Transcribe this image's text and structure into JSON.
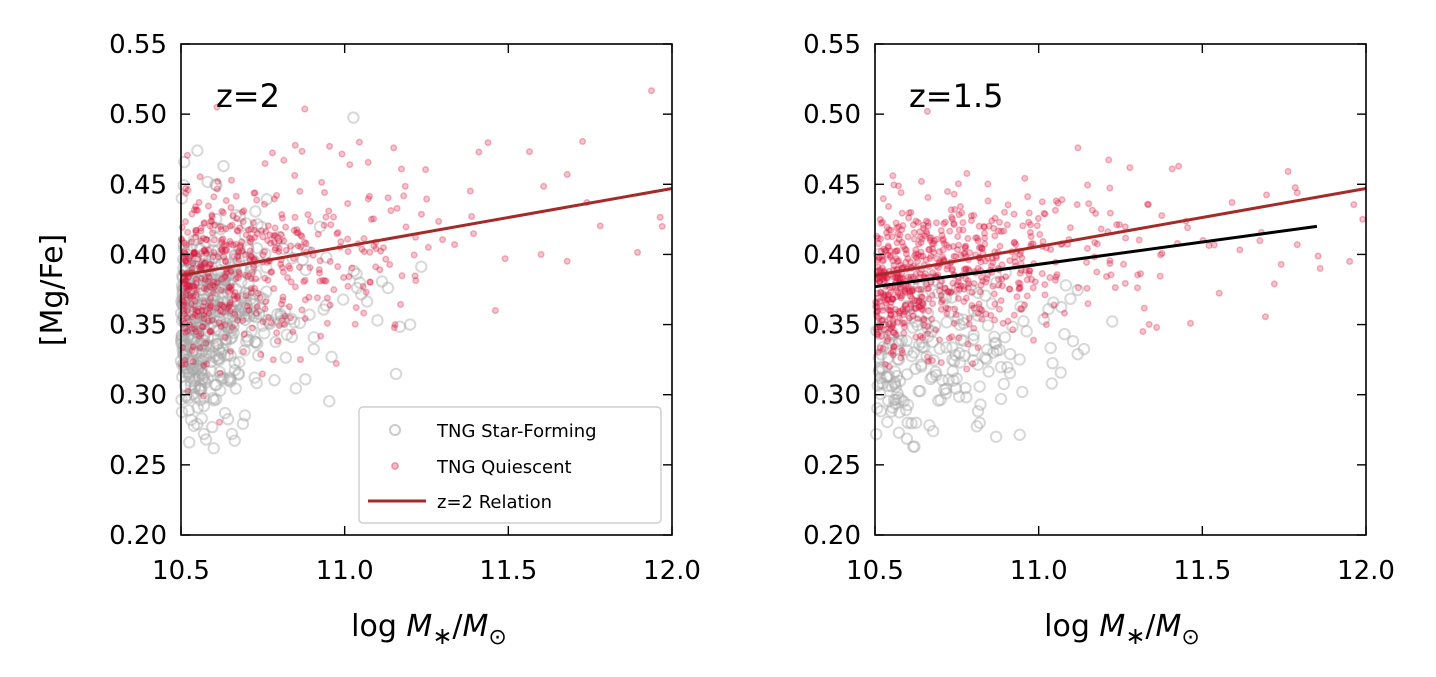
{
  "colors": {
    "star_forming": "#a8a8a8",
    "quiescent": "#dc143c",
    "z2_relation": "#a52a2a",
    "z15_relation": "#000000"
  },
  "chart_data": [
    {
      "type": "scatter",
      "annotation": "z=2",
      "xlabel": "log M*/M⊙",
      "ylabel": "[Mg/Fe]",
      "xlim": [
        10.5,
        12.0
      ],
      "ylim": [
        0.2,
        0.55
      ],
      "xticks": [
        "10.5",
        "11.0",
        "11.5",
        "12.0"
      ],
      "yticks": [
        "0.20",
        "0.25",
        "0.30",
        "0.35",
        "0.40",
        "0.45",
        "0.50",
        "0.55"
      ],
      "grid": false,
      "legend_position": "lower-right",
      "legend": [
        "TNG Star-Forming",
        "TNG Quiescent",
        "z=2 Relation"
      ],
      "series": [
        {
          "name": "TNG Star-Forming",
          "marker": "open-circle",
          "cloud": {
            "n": 480,
            "x_min": 10.5,
            "x_scale": 0.14,
            "x_max": 11.25,
            "y_slope": 0.05,
            "y_mean": 0.355,
            "y_sd": 0.033,
            "seed": 11
          }
        },
        {
          "name": "TNG Quiescent",
          "marker": "dot",
          "cloud": {
            "n": 520,
            "x_min": 10.5,
            "x_scale": 0.24,
            "x_max": 12.0,
            "y_slope": 0.045,
            "y_mean": 0.395,
            "y_sd": 0.03,
            "seed": 23
          }
        },
        {
          "name": "z=2 Relation",
          "line": [
            [
              10.5,
              0.385
            ],
            [
              12.0,
              0.447
            ]
          ]
        }
      ],
      "outliers": [
        [
          10.55,
          0.474
        ],
        [
          10.57,
          0.292
        ],
        [
          10.63,
          0.463
        ],
        [
          10.62,
          0.303
        ],
        [
          10.96,
          0.327
        ],
        [
          10.88,
          0.311
        ],
        [
          11.1,
          0.353
        ],
        [
          11.2,
          0.35
        ]
      ],
      "quiescent_outliers": [
        [
          10.61,
          0.505
        ],
        [
          11.15,
          0.476
        ],
        [
          11.41,
          0.473
        ],
        [
          11.68,
          0.457
        ],
        [
          11.74,
          0.437
        ],
        [
          11.97,
          0.42
        ],
        [
          11.6,
          0.4
        ],
        [
          11.49,
          0.397
        ]
      ]
    },
    {
      "type": "scatter",
      "annotation": "z=1.5",
      "xlabel": "log M*/M⊙",
      "ylabel": "",
      "xlim": [
        10.5,
        12.0
      ],
      "ylim": [
        0.2,
        0.55
      ],
      "xticks": [
        "10.5",
        "11.0",
        "11.5",
        "12.0"
      ],
      "yticks": [
        "0.20",
        "0.25",
        "0.30",
        "0.35",
        "0.40",
        "0.45",
        "0.50",
        "0.55"
      ],
      "grid": false,
      "series": [
        {
          "name": "TNG Star-Forming",
          "marker": "open-circle",
          "cloud": {
            "n": 200,
            "x_min": 10.5,
            "x_scale": 0.22,
            "x_max": 11.25,
            "y_slope": 0.03,
            "y_mean": 0.328,
            "y_sd": 0.026,
            "seed": 37
          }
        },
        {
          "name": "TNG Quiescent",
          "marker": "dot",
          "cloud": {
            "n": 700,
            "x_min": 10.5,
            "x_scale": 0.28,
            "x_max": 12.0,
            "y_slope": 0.035,
            "y_mean": 0.39,
            "y_sd": 0.027,
            "seed": 53
          }
        },
        {
          "name": "z=2 Relation",
          "line": [
            [
              10.5,
              0.385
            ],
            [
              12.0,
              0.447
            ]
          ]
        },
        {
          "name": "",
          "line": [
            [
              10.5,
              0.377
            ],
            [
              11.85,
              0.42
            ]
          ]
        }
      ],
      "outliers": [
        [
          10.87,
          0.27
        ],
        [
          10.82,
          0.28
        ],
        [
          10.55,
          0.288
        ],
        [
          10.6,
          0.28
        ],
        [
          11.04,
          0.308
        ],
        [
          10.95,
          0.302
        ]
      ],
      "quiescent_outliers": [
        [
          10.66,
          0.502
        ],
        [
          11.12,
          0.476
        ],
        [
          11.79,
          0.444
        ],
        [
          11.95,
          0.395
        ],
        [
          11.99,
          0.425
        ],
        [
          11.86,
          0.39
        ],
        [
          11.72,
          0.379
        ],
        [
          11.79,
          0.407
        ]
      ]
    }
  ]
}
